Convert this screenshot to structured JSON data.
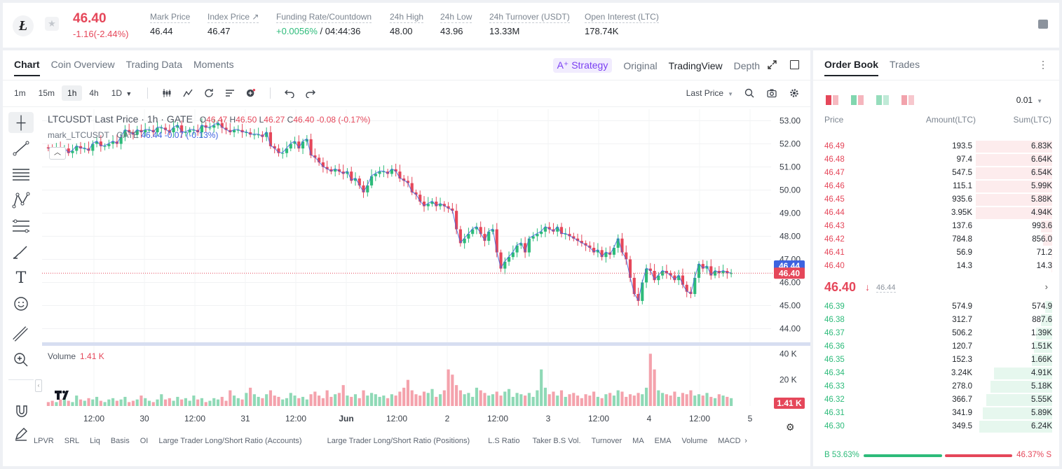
{
  "ticker": {
    "price": "46.40",
    "change": "-1.16(-2.44%)",
    "mark_label": "Mark Price",
    "mark_value": "46.44",
    "index_label": "Index Price ↗",
    "index_value": "46.47",
    "funding_label": "Funding Rate/Countdown",
    "funding_rate": "+0.0056%",
    "funding_countdown": " / 04:44:36",
    "high_label": "24h High",
    "high_value": "48.00",
    "low_label": "24h Low",
    "low_value": "43.96",
    "turnover_label": "24h Turnover (USDT)",
    "turnover_value": "13.33M",
    "oi_label": "Open Interest (LTC)",
    "oi_value": "178.74K",
    "coin_glyph": "Ł"
  },
  "chart_tabs": [
    "Chart",
    "Coin Overview",
    "Trading Data",
    "Moments"
  ],
  "view_tabs": {
    "strategy": "A⁺ Strategy",
    "original": "Original",
    "tradingview": "TradingView",
    "depth": "Depth"
  },
  "timeframes": [
    "1m",
    "15m",
    "1h",
    "4h",
    "1D"
  ],
  "price_type": "Last Price",
  "legend": {
    "symbol": "LTCUSDT Last Price · 1h · GATE",
    "o_lbl": "O",
    "o": "46.47",
    "h_lbl": "H",
    "h": "46.50",
    "l_lbl": "L",
    "l": "46.27",
    "c_lbl": "C",
    "c": "46.40",
    "chg": "-0.08 (-0.17%)",
    "mark": "mark_LTCUSDT · GATE",
    "mark_vals": "46.44 -0.07 (-0.13%)"
  },
  "volume_legend": {
    "label": "Volume",
    "value": "1.41 K"
  },
  "indicators": [
    "LPVR",
    "SRL",
    "Liq",
    "Basis",
    "OI",
    "Large Trader Long/Short Ratio (Accounts)",
    "Large Trader Long/Short Ratio (Positions)",
    "L.S Ratio",
    "Taker B.S Vol.",
    "Turnover",
    "MA",
    "EMA",
    "Volume",
    "MACD"
  ],
  "chart_data": {
    "type": "candlestick",
    "symbol": "LTCUSDT",
    "interval": "1h",
    "ylim": [
      43.5,
      53.5
    ],
    "y_ticks": [
      "53.00",
      "52.00",
      "51.00",
      "50.00",
      "49.00",
      "48.00",
      "47.00",
      "46.00",
      "45.00",
      "44.00"
    ],
    "x_ticks": [
      "12:00",
      "30",
      "12:00",
      "31",
      "12:00",
      "Jun",
      "12:00",
      "2",
      "12:00",
      "3",
      "12:00",
      "4",
      "12:00",
      "5"
    ],
    "last_price": 46.4,
    "last_label": "46.40",
    "mark_price": 46.44,
    "mark_label": "46.44",
    "volume_ticks": [
      "40 K",
      "20 K"
    ],
    "volume_last_label": "1.41 K",
    "volume_ylim": [
      0,
      45
    ],
    "close_path": [
      51.8,
      51.7,
      51.8,
      51.7,
      51.8,
      51.6,
      51.7,
      51.9,
      51.8,
      51.8,
      51.7,
      52.0,
      52.1,
      51.9,
      51.9,
      52.0,
      52.1,
      52.0,
      52.3,
      52.6,
      52.5,
      52.4,
      52.6,
      52.5,
      52.6,
      52.6,
      52.5,
      52.7,
      52.7,
      52.6,
      52.5,
      52.7,
      52.8,
      52.5,
      52.5,
      52.6,
      52.6,
      52.5,
      52.8,
      52.7,
      52.7,
      52.8,
      52.9,
      52.7,
      52.6,
      52.5,
      52.6,
      52.6,
      52.5,
      52.5,
      52.4,
      52.4,
      52.4,
      52.3,
      52.5,
      51.9,
      51.8,
      51.6,
      51.6,
      51.8,
      52.0,
      52.1,
      51.8,
      52.1,
      52.2,
      51.5,
      51.4,
      51.2,
      51.0,
      50.9,
      50.8,
      50.9,
      50.8,
      50.7,
      50.8,
      50.4,
      50.5,
      50.2,
      49.9,
      50.2,
      50.6,
      50.7,
      50.8,
      50.8,
      50.7,
      50.9,
      50.8,
      50.5,
      50.4,
      50.3,
      49.9,
      49.8,
      49.5,
      49.3,
      49.4,
      49.5,
      49.3,
      49.4,
      49.3,
      49.2,
      49.1,
      48.3,
      47.7,
      47.9,
      48.1,
      48.3,
      48.4,
      48.1,
      47.8,
      48.2,
      48.3,
      47.3,
      46.6,
      46.9,
      47.1,
      47.3,
      47.6,
      47.7,
      47.3,
      47.9,
      48.0,
      48.1,
      48.2,
      48.4,
      48.3,
      48.2,
      48.4,
      48.1,
      48.1,
      48.0,
      47.9,
      47.8,
      47.7,
      47.6,
      47.5,
      47.3,
      47.4,
      47.1,
      47.3,
      47.2,
      47.5,
      47.9,
      47.3,
      47.0,
      46.2,
      45.5,
      45.2,
      46.0,
      46.6,
      46.5,
      46.1,
      46.3,
      46.5,
      46.4,
      46.3,
      46.1,
      46.3,
      45.9,
      45.6,
      45.5,
      46.2,
      46.8,
      46.6,
      46.7,
      46.3,
      46.5,
      46.4,
      46.5,
      46.4,
      46.4
    ],
    "volume_path": [
      3,
      4,
      3,
      5,
      6,
      4,
      3,
      8,
      5,
      4,
      6,
      5,
      7,
      4,
      3,
      5,
      6,
      4,
      5,
      7,
      3,
      4,
      5,
      8,
      6,
      4,
      3,
      5,
      9,
      5,
      6,
      4,
      7,
      5,
      6,
      4,
      8,
      5,
      6,
      3,
      4,
      6,
      5,
      7,
      4,
      12,
      8,
      6,
      5,
      10,
      14,
      9,
      7,
      6,
      9,
      12,
      8,
      7,
      5,
      6,
      10,
      8,
      6,
      7,
      5,
      9,
      11,
      8,
      6,
      12,
      7,
      9,
      10,
      16,
      8,
      7,
      9,
      6,
      12,
      8,
      10,
      9,
      7,
      8,
      6,
      9,
      8,
      11,
      14,
      20,
      12,
      9,
      8,
      11,
      10,
      13,
      7,
      9,
      12,
      28,
      24,
      16,
      12,
      9,
      10,
      7,
      14,
      12,
      10,
      8,
      9,
      11,
      8,
      11,
      13,
      7,
      10,
      9,
      8,
      10,
      7,
      12,
      28,
      14,
      9,
      11,
      8,
      12,
      7,
      9,
      10,
      8,
      6,
      9,
      8,
      11,
      7,
      6,
      9,
      10,
      8,
      12,
      11,
      7,
      9,
      8,
      10,
      9,
      14,
      40,
      28,
      12,
      10,
      9,
      8,
      11,
      7,
      10,
      9,
      12,
      8,
      9,
      8,
      10,
      7,
      6,
      9,
      8,
      7,
      6,
      5,
      3,
      2
    ]
  },
  "orderbook": {
    "tabs": [
      "Order Book",
      "Trades"
    ],
    "step": "0.01",
    "head": {
      "price": "Price",
      "amount": "Amount(LTC)",
      "sum": "Sum(LTC)"
    },
    "asks": [
      {
        "p": "46.49",
        "a": "193.5",
        "s": "6.83K",
        "d": 0.21
      },
      {
        "p": "46.48",
        "a": "97.4",
        "s": "6.64K",
        "d": 0.21
      },
      {
        "p": "46.47",
        "a": "547.5",
        "s": "6.54K",
        "d": 0.21
      },
      {
        "p": "46.46",
        "a": "115.1",
        "s": "5.99K",
        "d": 0.21
      },
      {
        "p": "46.45",
        "a": "935.6",
        "s": "5.88K",
        "d": 0.21
      },
      {
        "p": "46.44",
        "a": "3.95K",
        "s": "4.94K",
        "d": 0.21
      },
      {
        "p": "46.43",
        "a": "137.6",
        "s": "993.6",
        "d": 0.03
      },
      {
        "p": "46.42",
        "a": "784.8",
        "s": "856.0",
        "d": 0.025
      },
      {
        "p": "46.41",
        "a": "56.9",
        "s": "71.2",
        "d": 0.002
      },
      {
        "p": "46.40",
        "a": "14.3",
        "s": "14.3",
        "d": 0.0005
      }
    ],
    "mid": {
      "price": "46.40",
      "arrow": "🡓",
      "mark": "46.44"
    },
    "bids": [
      {
        "p": "46.39",
        "a": "574.9",
        "s": "574.9",
        "d": 0.02
      },
      {
        "p": "46.38",
        "a": "312.7",
        "s": "887.6",
        "d": 0.03
      },
      {
        "p": "46.37",
        "a": "506.2",
        "s": "1.39K",
        "d": 0.045
      },
      {
        "p": "46.36",
        "a": "120.7",
        "s": "1.51K",
        "d": 0.05
      },
      {
        "p": "46.35",
        "a": "152.3",
        "s": "1.66K",
        "d": 0.055
      },
      {
        "p": "46.34",
        "a": "3.24K",
        "s": "4.91K",
        "d": 0.16
      },
      {
        "p": "46.33",
        "a": "278.0",
        "s": "5.18K",
        "d": 0.17
      },
      {
        "p": "46.32",
        "a": "366.7",
        "s": "5.55K",
        "d": 0.18
      },
      {
        "p": "46.31",
        "a": "341.9",
        "s": "5.89K",
        "d": 0.19
      },
      {
        "p": "46.30",
        "a": "349.5",
        "s": "6.24K",
        "d": 0.2
      }
    ],
    "buy_ratio": "B 53.63%",
    "sell_ratio": "46.37% S",
    "buy_fraction": 0.5363
  },
  "colors": {
    "up": "#2dbb7a",
    "down": "#e5475a",
    "mark": "#3d63e0"
  }
}
